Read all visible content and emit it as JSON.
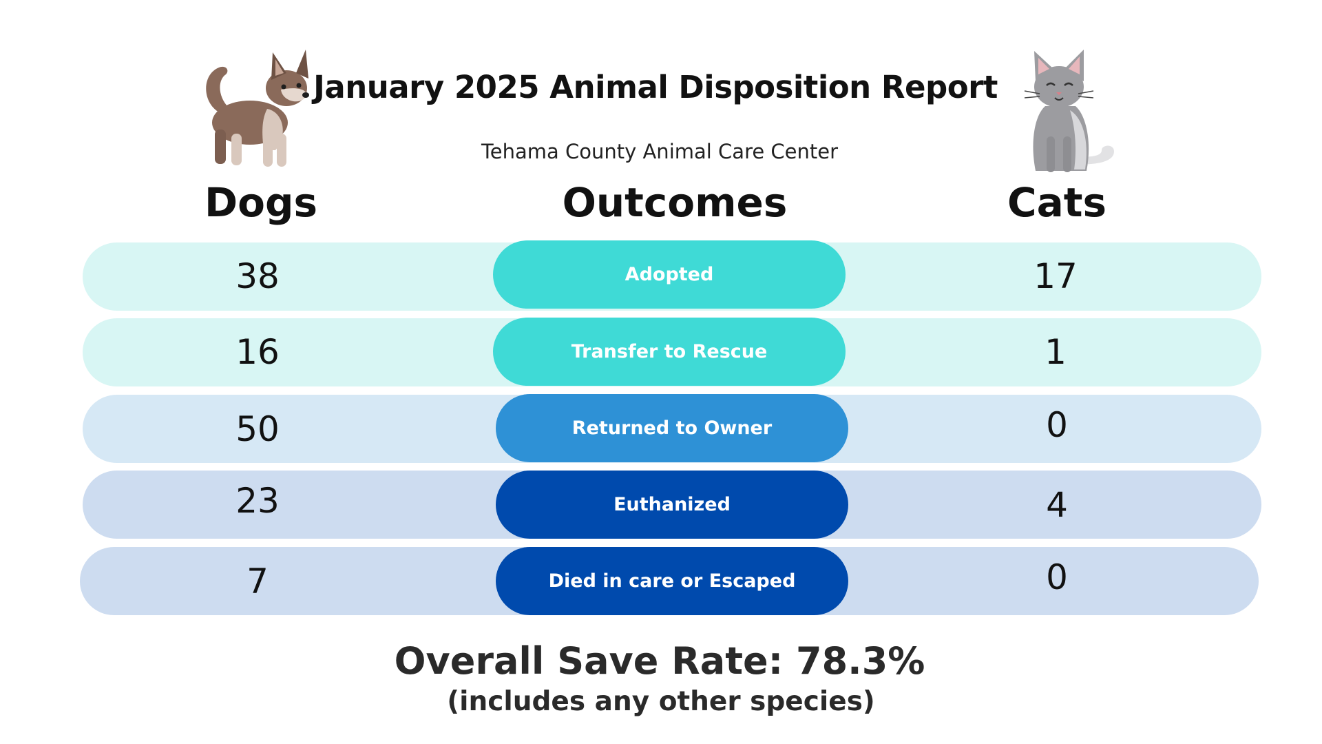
{
  "header": {
    "title": "January 2025 Animal Disposition Report",
    "subtitle": "Tehama County Animal Care Center"
  },
  "columns": {
    "dogs": "Dogs",
    "outcomes": "Outcomes",
    "cats": "Cats"
  },
  "rows": [
    {
      "outcome": "Adopted",
      "dogs": "38",
      "cats": "17",
      "row_color": "#d8f6f4",
      "pill_color": "#3fdad6"
    },
    {
      "outcome": "Transfer to Rescue",
      "dogs": "16",
      "cats": "1",
      "row_color": "#d8f6f4",
      "pill_color": "#3fdad6"
    },
    {
      "outcome": "Returned to Owner",
      "dogs": "50",
      "cats": "0",
      "row_color": "#d6e8f5",
      "pill_color": "#2e91d6"
    },
    {
      "outcome": "Euthanized",
      "dogs": "23",
      "cats": "4",
      "row_color": "#cddcf0",
      "pill_color": "#004aad"
    },
    {
      "outcome": "Died in care or Escaped",
      "dogs": "7",
      "cats": "0",
      "row_color": "#cddcf0",
      "pill_color": "#004aad"
    }
  ],
  "footer": {
    "save_rate": "Overall Save Rate: 78.3%",
    "note": "(includes any other species)"
  },
  "icons": {
    "dog": "dog-illustration-icon",
    "cat": "cat-illustration-icon"
  }
}
